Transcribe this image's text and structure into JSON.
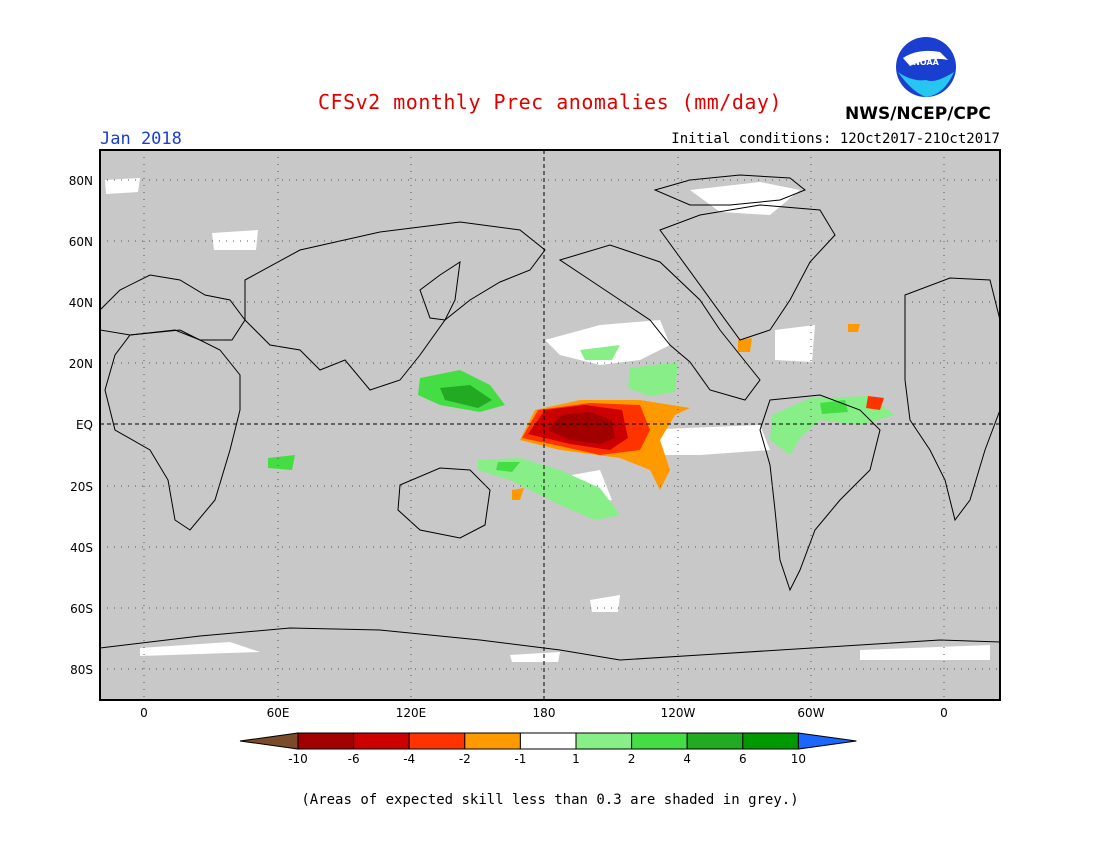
{
  "title": "CFSv2 monthly Prec anomalies (mm/day)",
  "month_label": "Jan 2018",
  "initial_conditions": "Initial conditions: 12Oct2017-21Oct2017",
  "agency": "NWS/NCEP/CPC",
  "logo_text": "NOAA",
  "footnote": "(Areas of expected skill less than 0.3 are shaded in grey.)",
  "map": {
    "background_color": "#c8c8c8",
    "lat_labels": [
      "80N",
      "60N",
      "40N",
      "20N",
      "EQ",
      "20S",
      "40S",
      "60S",
      "80S"
    ],
    "lon_labels": [
      "0",
      "60E",
      "120E",
      "180",
      "120W",
      "60W",
      "0"
    ]
  },
  "colorbar": {
    "labels": [
      "-10",
      "-6",
      "-4",
      "-2",
      "-1",
      "1",
      "2",
      "4",
      "6",
      "10"
    ],
    "colors": [
      "#7a4a2a",
      "#a00000",
      "#cc0000",
      "#ff3300",
      "#ff9900",
      "#ffffff",
      "#88ee88",
      "#44dd44",
      "#22aa22",
      "#009900",
      "#1a66ff"
    ]
  },
  "icons": [
    "noaa-logo-icon"
  ]
}
